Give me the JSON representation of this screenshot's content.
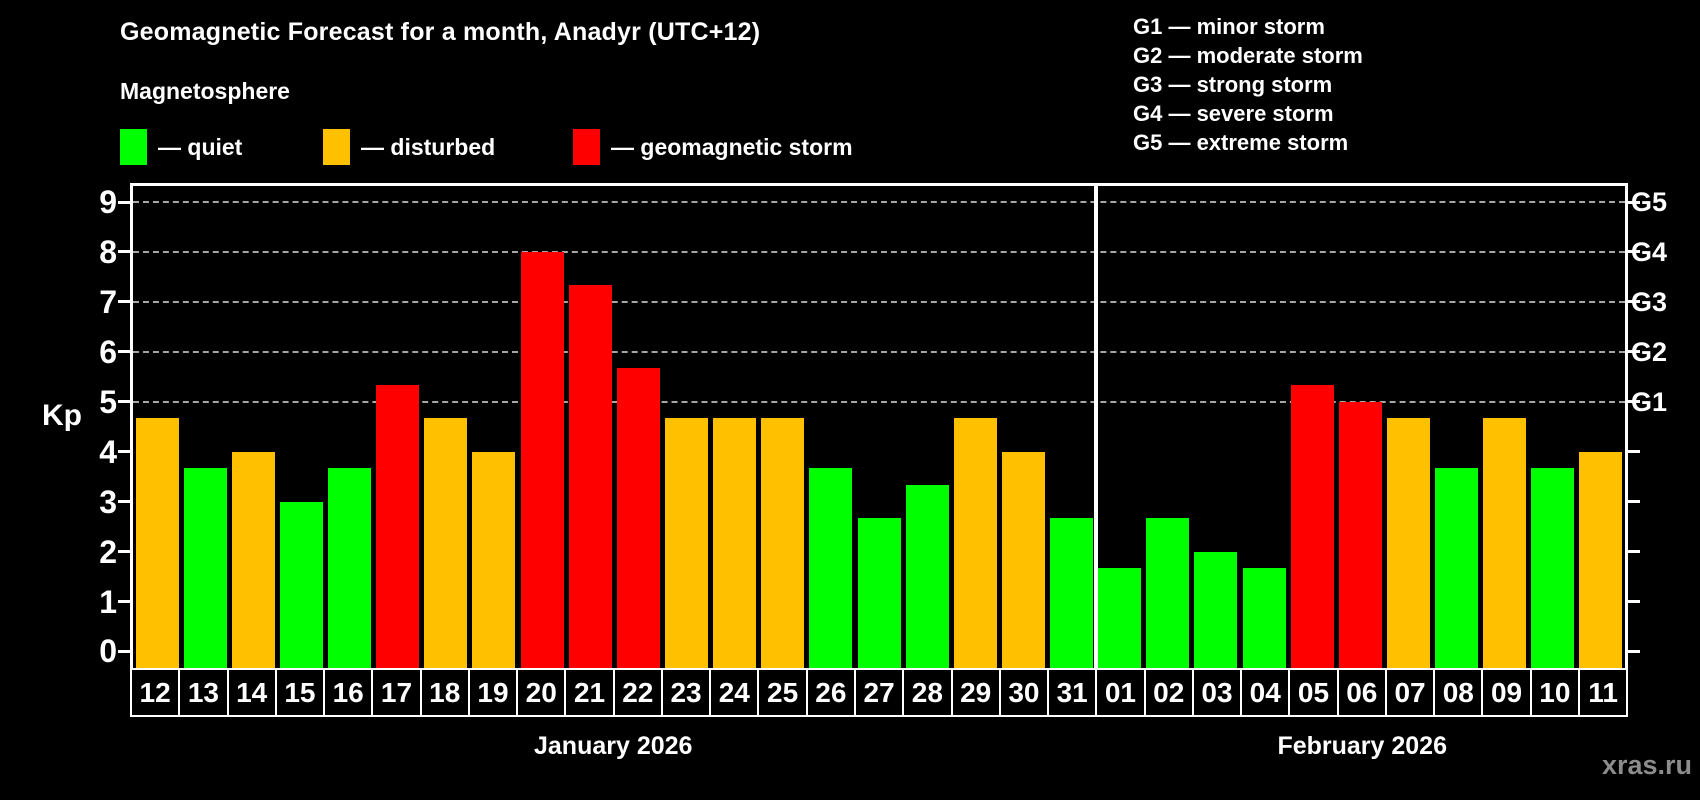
{
  "header": {
    "title": "Geomagnetic Forecast for a month, Anadyr (UTC+12)",
    "subtitle": "Magnetosphere"
  },
  "legend": {
    "items": [
      {
        "key": "quiet",
        "label": "— quiet",
        "color": "#00ff00"
      },
      {
        "key": "disturbed",
        "label": "— disturbed",
        "color": "#ffc000"
      },
      {
        "key": "storm",
        "label": "— geomagnetic storm",
        "color": "#ff0000"
      }
    ]
  },
  "g_scale_legend": [
    "G1 — minor storm",
    "G2 — moderate storm",
    "G3 — strong storm",
    "G4 — severe storm",
    "G5 — extreme storm"
  ],
  "watermark": "xras.ru",
  "chart_data": {
    "type": "bar",
    "title": "Geomagnetic Forecast for a month, Anadyr (UTC+12)",
    "ylabel": "Kp",
    "ylim": [
      -0.3,
      9.35
    ],
    "yticks": [
      0,
      1,
      2,
      3,
      4,
      5,
      6,
      7,
      8,
      9
    ],
    "gridlines_at": [
      5,
      6,
      7,
      8,
      9
    ],
    "grid": "dashed",
    "right_axis_labels": [
      {
        "kp": 5,
        "label": "G1"
      },
      {
        "kp": 6,
        "label": "G2"
      },
      {
        "kp": 7,
        "label": "G3"
      },
      {
        "kp": 8,
        "label": "G4"
      },
      {
        "kp": 9,
        "label": "G5"
      }
    ],
    "level_colors": {
      "quiet": "#00ff00",
      "disturbed": "#ffc000",
      "storm": "#ff0000"
    },
    "months": [
      {
        "label": "January 2026",
        "days": 20
      },
      {
        "label": "February 2026",
        "days": 11
      }
    ],
    "bars": [
      {
        "month": "January 2026",
        "day": "12",
        "kp": 4.67,
        "level": "disturbed"
      },
      {
        "month": "January 2026",
        "day": "13",
        "kp": 3.67,
        "level": "quiet"
      },
      {
        "month": "January 2026",
        "day": "14",
        "kp": 4.0,
        "level": "disturbed"
      },
      {
        "month": "January 2026",
        "day": "15",
        "kp": 3.0,
        "level": "quiet"
      },
      {
        "month": "January 2026",
        "day": "16",
        "kp": 3.67,
        "level": "quiet"
      },
      {
        "month": "January 2026",
        "day": "17",
        "kp": 5.33,
        "level": "storm"
      },
      {
        "month": "January 2026",
        "day": "18",
        "kp": 4.67,
        "level": "disturbed"
      },
      {
        "month": "January 2026",
        "day": "19",
        "kp": 4.0,
        "level": "disturbed"
      },
      {
        "month": "January 2026",
        "day": "20",
        "kp": 8.0,
        "level": "storm"
      },
      {
        "month": "January 2026",
        "day": "21",
        "kp": 7.33,
        "level": "storm"
      },
      {
        "month": "January 2026",
        "day": "22",
        "kp": 5.67,
        "level": "storm"
      },
      {
        "month": "January 2026",
        "day": "23",
        "kp": 4.67,
        "level": "disturbed"
      },
      {
        "month": "January 2026",
        "day": "24",
        "kp": 4.67,
        "level": "disturbed"
      },
      {
        "month": "January 2026",
        "day": "25",
        "kp": 4.67,
        "level": "disturbed"
      },
      {
        "month": "January 2026",
        "day": "26",
        "kp": 3.67,
        "level": "quiet"
      },
      {
        "month": "January 2026",
        "day": "27",
        "kp": 2.67,
        "level": "quiet"
      },
      {
        "month": "January 2026",
        "day": "28",
        "kp": 3.33,
        "level": "quiet"
      },
      {
        "month": "January 2026",
        "day": "29",
        "kp": 4.67,
        "level": "disturbed"
      },
      {
        "month": "January 2026",
        "day": "30",
        "kp": 4.0,
        "level": "disturbed"
      },
      {
        "month": "January 2026",
        "day": "31",
        "kp": 2.67,
        "level": "quiet"
      },
      {
        "month": "February 2026",
        "day": "01",
        "kp": 1.67,
        "level": "quiet"
      },
      {
        "month": "February 2026",
        "day": "02",
        "kp": 2.67,
        "level": "quiet"
      },
      {
        "month": "February 2026",
        "day": "03",
        "kp": 2.0,
        "level": "quiet"
      },
      {
        "month": "February 2026",
        "day": "04",
        "kp": 1.67,
        "level": "quiet"
      },
      {
        "month": "February 2026",
        "day": "05",
        "kp": 5.33,
        "level": "storm"
      },
      {
        "month": "February 2026",
        "day": "06",
        "kp": 5.0,
        "level": "storm"
      },
      {
        "month": "February 2026",
        "day": "07",
        "kp": 4.67,
        "level": "disturbed"
      },
      {
        "month": "February 2026",
        "day": "08",
        "kp": 3.67,
        "level": "quiet"
      },
      {
        "month": "February 2026",
        "day": "09",
        "kp": 4.67,
        "level": "disturbed"
      },
      {
        "month": "February 2026",
        "day": "10",
        "kp": 3.67,
        "level": "quiet"
      },
      {
        "month": "February 2026",
        "day": "11",
        "kp": 4.0,
        "level": "disturbed"
      }
    ]
  }
}
